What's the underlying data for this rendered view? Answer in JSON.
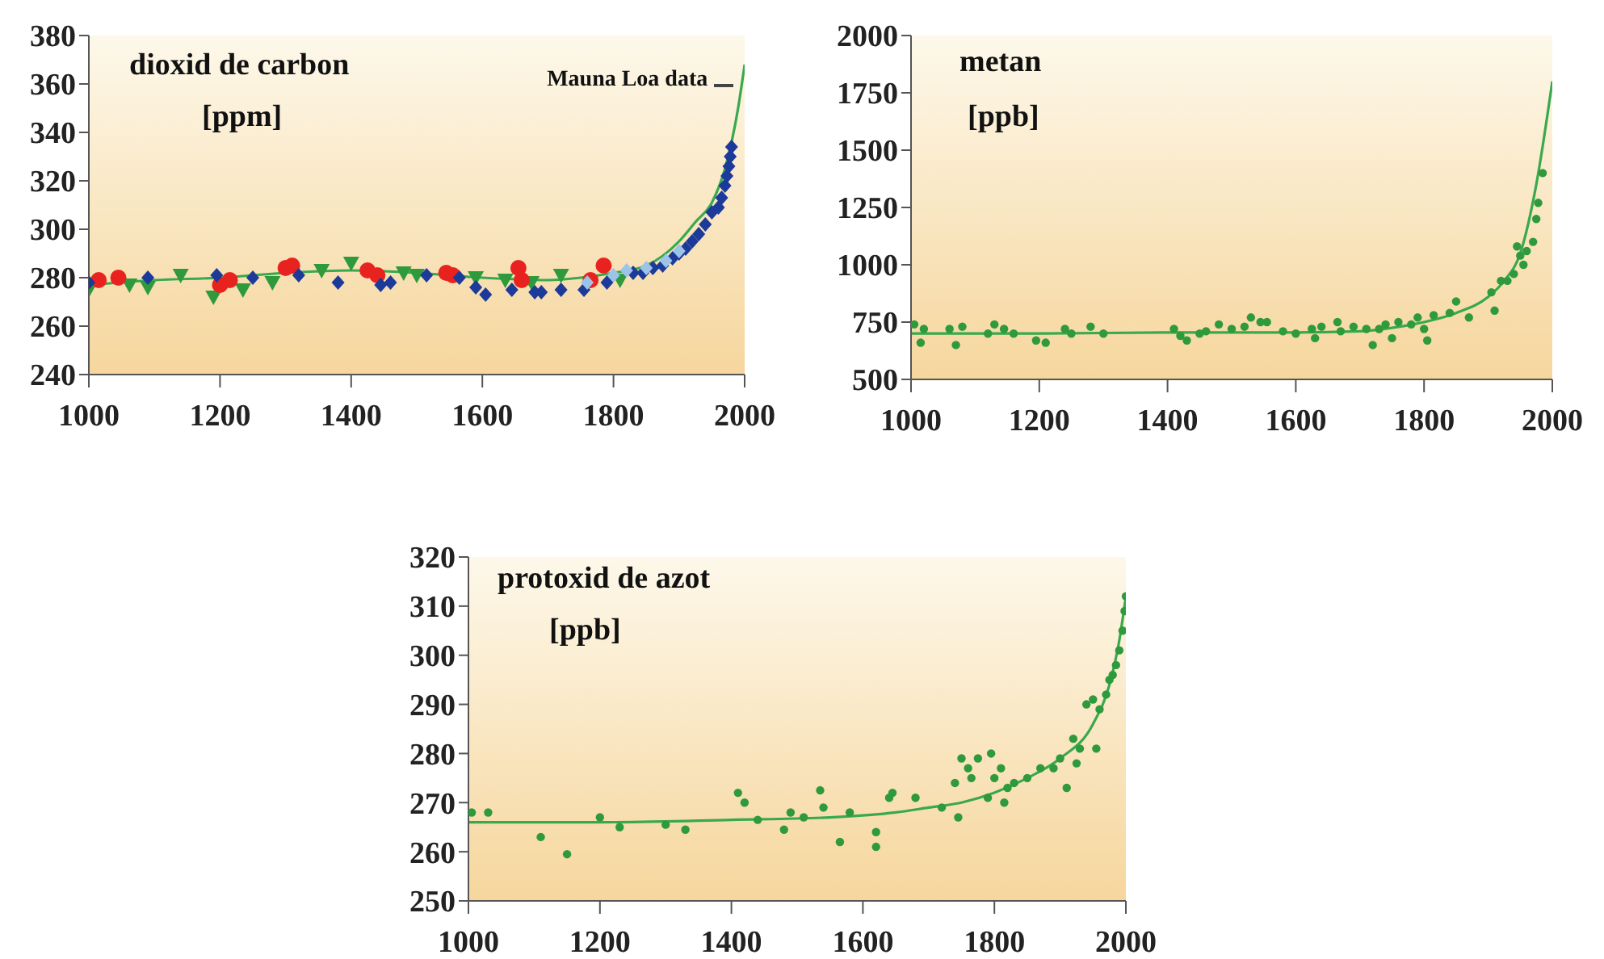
{
  "chart_data": [
    {
      "type": "scatter",
      "title": "dioxid de carbon",
      "subtitle": "[ppm]",
      "xlim": [
        1000,
        2000
      ],
      "xticks": [
        1000,
        1200,
        1400,
        1600,
        1800,
        2000
      ],
      "ylim": [
        240,
        380
      ],
      "yticks": [
        240,
        260,
        280,
        300,
        320,
        340,
        360,
        380
      ],
      "annotations": [
        {
          "text": "Mauna Loa data",
          "x": 1988,
          "y": 360
        }
      ],
      "series": [
        {
          "type": "line",
          "color": "#3aa84e",
          "x": [
            1000,
            1100,
            1200,
            1300,
            1400,
            1500,
            1600,
            1700,
            1750,
            1800,
            1850,
            1900,
            1925,
            1950,
            1970,
            1990,
            2000
          ],
          "values": [
            277,
            279,
            280,
            282,
            283,
            282,
            280,
            279,
            280,
            282,
            285,
            295,
            303,
            311,
            325,
            350,
            368
          ]
        },
        {
          "marker": "triangle",
          "color": "#2e9a3c",
          "x": [
            1000,
            1062,
            1090,
            1140,
            1190,
            1235,
            1280,
            1355,
            1400,
            1480,
            1500,
            1590,
            1635,
            1675,
            1720,
            1810
          ],
          "values": [
            275,
            277,
            276,
            281,
            272,
            275,
            278,
            283,
            286,
            282,
            281,
            280,
            279,
            278,
            281,
            279
          ]
        },
        {
          "marker": "circle",
          "color": "#e8231f",
          "x": [
            1015,
            1045,
            1200,
            1215,
            1300,
            1310,
            1425,
            1440,
            1545,
            1555,
            1655,
            1660,
            1765,
            1785
          ],
          "values": [
            279,
            280,
            277,
            279,
            284,
            285,
            283,
            281,
            282,
            281,
            284,
            279,
            279,
            285
          ]
        },
        {
          "marker": "diamond",
          "color": "#1b3a9a",
          "x": [
            1000,
            1090,
            1195,
            1250,
            1320,
            1380,
            1445,
            1460,
            1515,
            1565,
            1590,
            1605,
            1645,
            1680,
            1690,
            1720,
            1755,
            1790,
            1830,
            1845,
            1860,
            1875,
            1890,
            1900,
            1910,
            1920,
            1930,
            1940,
            1950,
            1960,
            1965,
            1970,
            1973,
            1976,
            1978,
            1980
          ],
          "values": [
            278,
            280,
            281,
            280,
            281,
            278,
            277,
            278,
            281,
            280,
            276,
            273,
            275,
            274,
            274,
            275,
            275,
            278,
            282,
            282,
            284,
            285,
            288,
            290,
            292,
            295,
            298,
            302,
            307,
            309,
            313,
            318,
            322,
            326,
            330,
            334
          ]
        },
        {
          "marker": "diamond",
          "color": "#9cc3e8",
          "x": [
            1760,
            1800,
            1820,
            1850,
            1880,
            1900
          ],
          "values": [
            278,
            281,
            283,
            284,
            287,
            291
          ]
        }
      ]
    },
    {
      "type": "scatter",
      "title": "metan",
      "subtitle": "[ppb]",
      "xlim": [
        1000,
        2000
      ],
      "xticks": [
        1000,
        1200,
        1400,
        1600,
        1800,
        2000
      ],
      "ylim": [
        500,
        2000
      ],
      "yticks": [
        500,
        750,
        1000,
        1250,
        1500,
        1750,
        2000
      ],
      "series": [
        {
          "type": "line",
          "color": "#3aa84e",
          "x": [
            1000,
            1200,
            1400,
            1600,
            1700,
            1750,
            1800,
            1850,
            1900,
            1925,
            1950,
            1975,
            2000
          ],
          "values": [
            700,
            700,
            705,
            705,
            710,
            725,
            750,
            790,
            860,
            930,
            1050,
            1350,
            1800
          ]
        },
        {
          "marker": "circle",
          "color": "#2e9a3c",
          "x": [
            1005,
            1015,
            1020,
            1060,
            1070,
            1080,
            1120,
            1130,
            1145,
            1160,
            1195,
            1210,
            1240,
            1250,
            1280,
            1300,
            1410,
            1420,
            1430,
            1450,
            1460,
            1480,
            1500,
            1520,
            1530,
            1545,
            1555,
            1580,
            1600,
            1625,
            1630,
            1640,
            1665,
            1670,
            1690,
            1710,
            1720,
            1730,
            1740,
            1750,
            1760,
            1780,
            1790,
            1800,
            1805,
            1815,
            1840,
            1850,
            1870,
            1905,
            1910,
            1920,
            1930,
            1940,
            1945,
            1950,
            1955,
            1960,
            1970,
            1975,
            1978,
            1985
          ],
          "values": [
            740,
            660,
            720,
            720,
            650,
            730,
            700,
            740,
            720,
            700,
            670,
            660,
            720,
            700,
            730,
            700,
            720,
            690,
            670,
            700,
            710,
            740,
            720,
            730,
            770,
            750,
            750,
            710,
            700,
            720,
            680,
            730,
            750,
            710,
            730,
            720,
            650,
            720,
            740,
            680,
            750,
            740,
            770,
            720,
            670,
            780,
            790,
            840,
            770,
            880,
            800,
            930,
            930,
            960,
            1080,
            1040,
            1000,
            1060,
            1100,
            1200,
            1270,
            1400
          ]
        }
      ]
    },
    {
      "type": "scatter",
      "title": "protoxid de azot",
      "subtitle": "[ppb]",
      "xlim": [
        1000,
        2000
      ],
      "xticks": [
        1000,
        1200,
        1400,
        1600,
        1800,
        2000
      ],
      "ylim": [
        250,
        320
      ],
      "yticks": [
        250,
        260,
        270,
        280,
        290,
        300,
        310,
        320
      ],
      "series": [
        {
          "type": "line",
          "color": "#3aa84e",
          "x": [
            1000,
            1200,
            1400,
            1550,
            1650,
            1700,
            1750,
            1800,
            1850,
            1900,
            1950,
            1975,
            1990,
            2000
          ],
          "values": [
            266,
            266,
            266.5,
            267,
            268,
            269,
            270,
            272,
            275,
            279,
            286,
            294,
            303,
            312
          ]
        },
        {
          "marker": "circle",
          "color": "#2e9a3c",
          "x": [
            1005,
            1030,
            1110,
            1150,
            1200,
            1230,
            1300,
            1330,
            1410,
            1420,
            1440,
            1480,
            1490,
            1510,
            1535,
            1540,
            1565,
            1580,
            1620,
            1620,
            1640,
            1645,
            1680,
            1720,
            1740,
            1745,
            1750,
            1760,
            1765,
            1775,
            1790,
            1795,
            1800,
            1810,
            1815,
            1820,
            1830,
            1850,
            1870,
            1890,
            1900,
            1910,
            1920,
            1925,
            1930,
            1940,
            1950,
            1955,
            1960,
            1970,
            1975,
            1980,
            1985,
            1990,
            1995,
            1998,
            2000
          ],
          "values": [
            268,
            268,
            263,
            259.5,
            267,
            265,
            265.5,
            264.5,
            272,
            270,
            266.5,
            264.5,
            268,
            267,
            272.5,
            269,
            262,
            268,
            264,
            261,
            271,
            272,
            271,
            269,
            274,
            267,
            279,
            277,
            275,
            279,
            271,
            280,
            275,
            277,
            270,
            273,
            274,
            275,
            277,
            277,
            279,
            273,
            283,
            278,
            281,
            290,
            291,
            281,
            289,
            292,
            295,
            296,
            298,
            301,
            305,
            309,
            312
          ]
        }
      ]
    }
  ]
}
